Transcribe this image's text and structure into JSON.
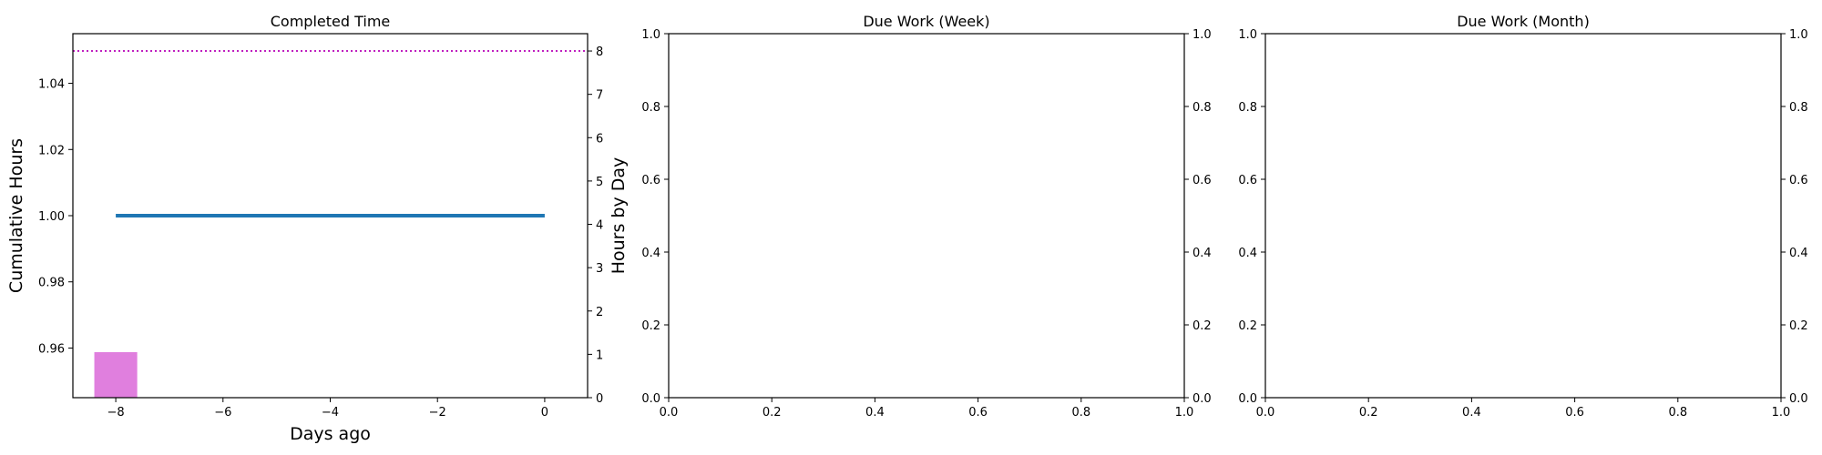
{
  "chart_data": [
    {
      "type": "line",
      "title": "Completed Time",
      "xlabel": "Days ago",
      "ylabel": "Cumulative Hours",
      "y2label": "Hours by Day",
      "xlim": [
        -8.8,
        0.8
      ],
      "ylim": [
        0.945,
        1.055
      ],
      "y2lim": [
        0,
        8.4
      ],
      "xticks": [
        -8,
        -6,
        -4,
        -2,
        0
      ],
      "yticks": [
        0.96,
        0.98,
        1.0,
        1.02,
        1.04
      ],
      "y2ticks": [
        0,
        1,
        2,
        3,
        4,
        5,
        6,
        7,
        8
      ],
      "series": [
        {
          "axis": "left",
          "kind": "line",
          "color": "#1f77b4",
          "x": [
            -8,
            0
          ],
          "y": [
            1.0,
            1.0
          ]
        },
        {
          "axis": "right",
          "kind": "bar",
          "color": "#e07fde",
          "x": [
            -8
          ],
          "y": [
            1.05
          ],
          "width": 0.8
        },
        {
          "axis": "right",
          "kind": "hline",
          "color": "#c020c0",
          "style": "dotted",
          "y": 8
        }
      ],
      "grid": false
    },
    {
      "type": "line",
      "title": "Due Work (Week)",
      "xlabel": "",
      "ylabel": "",
      "xlim": [
        0,
        1
      ],
      "ylim": [
        0,
        1
      ],
      "y2lim": [
        0,
        1
      ],
      "xticks": [
        0.0,
        0.2,
        0.4,
        0.6,
        0.8,
        1.0
      ],
      "yticks": [
        0.0,
        0.2,
        0.4,
        0.6,
        0.8,
        1.0
      ],
      "y2ticks": [
        0.0,
        0.2,
        0.4,
        0.6,
        0.8,
        1.0
      ],
      "series": [],
      "grid": false
    },
    {
      "type": "line",
      "title": "Due Work (Month)",
      "xlabel": "",
      "ylabel": "",
      "xlim": [
        0,
        1
      ],
      "ylim": [
        0,
        1
      ],
      "y2lim": [
        0,
        1
      ],
      "xticks": [
        0.0,
        0.2,
        0.4,
        0.6,
        0.8,
        1.0
      ],
      "yticks": [
        0.0,
        0.2,
        0.4,
        0.6,
        0.8,
        1.0
      ],
      "y2ticks": [
        0.0,
        0.2,
        0.4,
        0.6,
        0.8,
        1.0
      ],
      "series": [],
      "grid": false
    }
  ]
}
